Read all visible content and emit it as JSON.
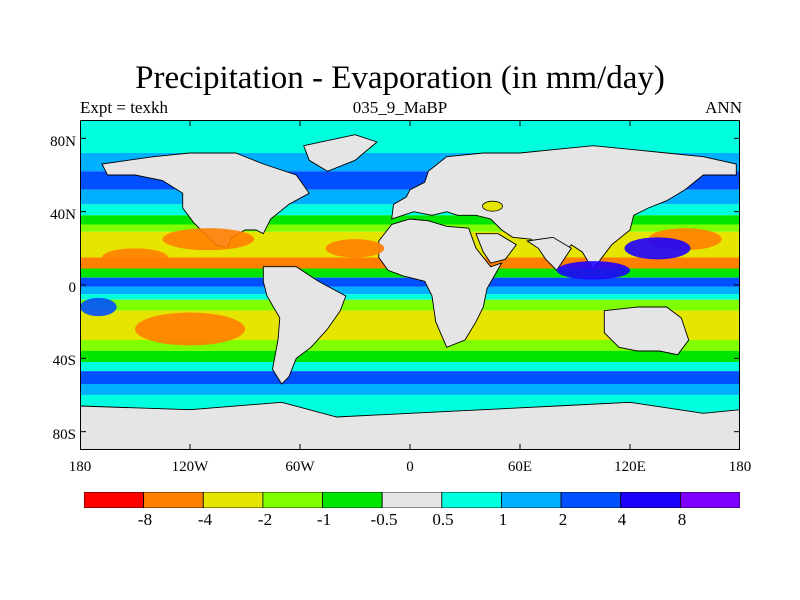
{
  "title": "Precipitation - Evaporation (in mm/day)",
  "subtitle_left": "Expt = texkh",
  "subtitle_center": "035_9_MaBP",
  "subtitle_right": "ANN",
  "map": {
    "projection": "cylindrical-equidistant",
    "lon_range": [
      -180,
      180
    ],
    "lat_range": [
      -90,
      90
    ],
    "x_ticks": [
      "180",
      "120W",
      "60W",
      "0",
      "60E",
      "120E",
      "180"
    ],
    "y_ticks": [
      "80N",
      "40N",
      "0",
      "40S",
      "80S"
    ],
    "continents": "paleogeography outline (~35 Ma)",
    "colorbar": {
      "levels": [
        "-8",
        "-4",
        "-2",
        "-1",
        "-0.5",
        "0.5",
        "1",
        "2",
        "4",
        "8"
      ],
      "colors": [
        "#ff0000",
        "#ff7f00",
        "#e5e500",
        "#7fff00",
        "#00e500",
        "#e5e5e5",
        "#00ffdf",
        "#00afff",
        "#0050ff",
        "#1e00ff",
        "#7f00ff"
      ]
    }
  }
}
